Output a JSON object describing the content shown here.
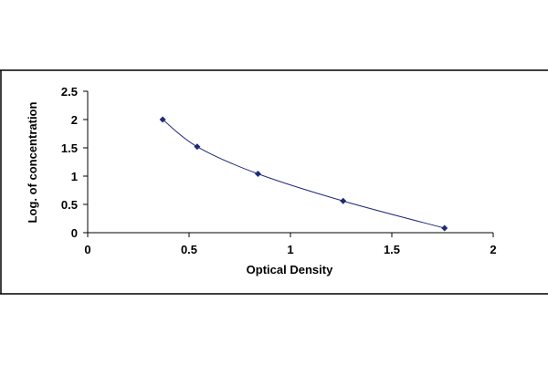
{
  "chart_data": {
    "type": "scatter",
    "title": "",
    "xlabel": "Optical Density",
    "ylabel": "Log. of concentration",
    "xlim": [
      0,
      2
    ],
    "ylim": [
      0,
      2.5
    ],
    "x_ticks": [
      "0",
      "0.5",
      "1",
      "1.5",
      "2"
    ],
    "y_ticks": [
      "0",
      "0.5",
      "1",
      "1.5",
      "2",
      "2.5"
    ],
    "grid": false,
    "legend": "none",
    "trendline": "smooth curve",
    "series": [
      {
        "x": [
          0.37,
          0.54,
          0.84,
          1.26,
          1.76
        ],
        "y": [
          2.0,
          1.52,
          1.04,
          0.56,
          0.08
        ]
      }
    ],
    "colors": {
      "marker": "#1f2a78",
      "line": "#1f2a78",
      "axis": "#000000"
    }
  }
}
